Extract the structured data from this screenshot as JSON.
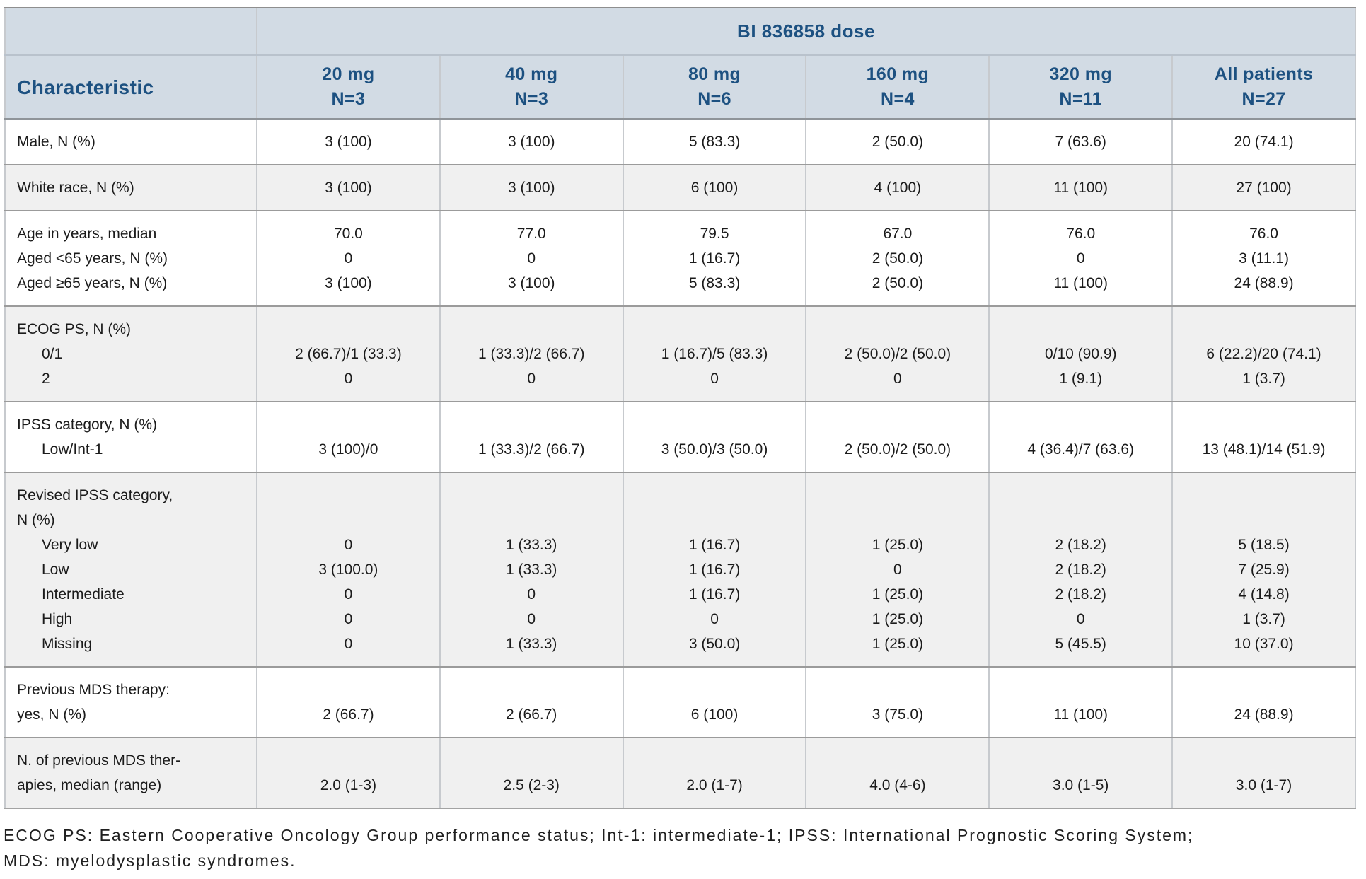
{
  "table": {
    "dose_group_header": "BI 836858 dose",
    "characteristic_header": "Characteristic",
    "columns": [
      {
        "dose": "20 mg",
        "n": "N=3"
      },
      {
        "dose": "40 mg",
        "n": "N=3"
      },
      {
        "dose": "80 mg",
        "n": "N=6"
      },
      {
        "dose": "160 mg",
        "n": "N=4"
      },
      {
        "dose": "320 mg",
        "n": "N=11"
      },
      {
        "dose": "All patients",
        "n": "N=27"
      }
    ],
    "rows": [
      {
        "label_lines": [
          "Male, N (%)"
        ],
        "values": [
          [
            "3 (100)"
          ],
          [
            "3 (100)"
          ],
          [
            "5 (83.3)"
          ],
          [
            "2 (50.0)"
          ],
          [
            "7 (63.6)"
          ],
          [
            "20 (74.1)"
          ]
        ]
      },
      {
        "label_lines": [
          "White race, N (%)"
        ],
        "values": [
          [
            "3 (100)"
          ],
          [
            "3 (100)"
          ],
          [
            "6 (100)"
          ],
          [
            "4 (100)"
          ],
          [
            "11 (100)"
          ],
          [
            "27 (100)"
          ]
        ]
      },
      {
        "label_lines": [
          "Age in years, median",
          "Aged <65 years, N (%)",
          "Aged ≥65 years, N (%)"
        ],
        "values": [
          [
            "70.0",
            "0",
            "3 (100)"
          ],
          [
            "77.0",
            "0",
            "3 (100)"
          ],
          [
            "79.5",
            "1 (16.7)",
            "5 (83.3)"
          ],
          [
            "67.0",
            "2 (50.0)",
            "2 (50.0)"
          ],
          [
            "76.0",
            "0",
            "11 (100)"
          ],
          [
            "76.0",
            "3 (11.1)",
            "24 (88.9)"
          ]
        ]
      },
      {
        "label_lines": [
          "ECOG PS, N (%)",
          "      0/1",
          "      2"
        ],
        "values": [
          [
            "",
            "2 (66.7)/1 (33.3)",
            "0"
          ],
          [
            "",
            "1 (33.3)/2 (66.7)",
            "0"
          ],
          [
            "",
            "1 (16.7)/5 (83.3)",
            "0"
          ],
          [
            "",
            "2 (50.0)/2 (50.0)",
            "0"
          ],
          [
            "",
            "0/10 (90.9)",
            "1 (9.1)"
          ],
          [
            "",
            "6 (22.2)/20 (74.1)",
            "1 (3.7)"
          ]
        ]
      },
      {
        "label_lines": [
          "IPSS category, N (%)",
          "      Low/Int-1"
        ],
        "values": [
          [
            "",
            "3 (100)/0"
          ],
          [
            "",
            "1 (33.3)/2 (66.7)"
          ],
          [
            "",
            "3 (50.0)/3 (50.0)"
          ],
          [
            "",
            "2 (50.0)/2 (50.0)"
          ],
          [
            "",
            "4 (36.4)/7 (63.6)"
          ],
          [
            "",
            "13 (48.1)/14 (51.9)"
          ]
        ]
      },
      {
        "label_lines": [
          "Revised IPSS category,",
          "N (%)",
          "      Very low",
          "      Low",
          "      Intermediate",
          "      High",
          "      Missing"
        ],
        "values": [
          [
            "",
            "",
            "0",
            "3 (100.0)",
            "0",
            "0",
            "0"
          ],
          [
            "",
            "",
            "1 (33.3)",
            "1 (33.3)",
            "0",
            "0",
            "1 (33.3)"
          ],
          [
            "",
            "",
            "1 (16.7)",
            "1 (16.7)",
            "1 (16.7)",
            "0",
            "3 (50.0)"
          ],
          [
            "",
            "",
            "1 (25.0)",
            "0",
            "1 (25.0)",
            "1 (25.0)",
            "1 (25.0)"
          ],
          [
            "",
            "",
            "2 (18.2)",
            "2 (18.2)",
            "2 (18.2)",
            "0",
            "5 (45.5)"
          ],
          [
            "",
            "",
            "5 (18.5)",
            "7 (25.9)",
            "4 (14.8)",
            "1 (3.7)",
            "10 (37.0)"
          ]
        ]
      },
      {
        "label_lines": [
          "Previous MDS therapy:",
          "yes, N (%)"
        ],
        "values": [
          [
            "",
            "2 (66.7)"
          ],
          [
            "",
            "2 (66.7)"
          ],
          [
            "",
            "6 (100)"
          ],
          [
            "",
            "3 (75.0)"
          ],
          [
            "",
            "11 (100)"
          ],
          [
            "",
            "24 (88.9)"
          ]
        ]
      },
      {
        "label_lines": [
          "N. of previous MDS ther-",
          "apies, median (range)"
        ],
        "values": [
          [
            "",
            "2.0 (1-3)"
          ],
          [
            "",
            "2.5 (2-3)"
          ],
          [
            "",
            "2.0 (1-7)"
          ],
          [
            "",
            "4.0 (4-6)"
          ],
          [
            "",
            "3.0 (1-5)"
          ],
          [
            "",
            "3.0 (1-7)"
          ]
        ]
      }
    ]
  },
  "footnote": {
    "line1": "ECOG PS: Eastern Cooperative Oncology Group performance status; Int-1: intermediate-1; IPSS: International Prognostic Scoring System;",
    "line2": "MDS: myelodysplastic syndromes."
  },
  "colors": {
    "header_background": "#d2dbe4",
    "header_text": "#1d5181",
    "stripe_background": "#f0f0f0",
    "body_text": "#1b1b1b"
  }
}
